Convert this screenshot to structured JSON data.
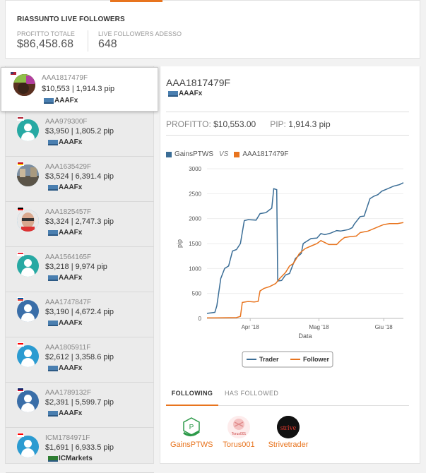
{
  "summary": {
    "title": "RIASSUNTO LIVE FOLLOWERS",
    "profit_label": "PROFITTO TOTALE",
    "profit_value": "$86,458.68",
    "live_label": "LIVE FOLLOWERS ADESSO",
    "live_value": "648"
  },
  "selected": {
    "id": "AAA1817479F",
    "stats": "$10,553 | 1,914.3 pip",
    "broker": "AAAFx"
  },
  "followers": [
    {
      "id": "AAA979300F",
      "stats": "$3,950 | 1,805.2 pip",
      "broker": "AAAFx",
      "avatar": "default-teal"
    },
    {
      "id": "AAA1635429F",
      "stats": "$3,524 | 6,391.4 pip",
      "broker": "AAAFx",
      "avatar": "photo-street"
    },
    {
      "id": "AAA1825457F",
      "stats": "$3,324 | 2,747.3 pip",
      "broker": "AAAFx",
      "avatar": "photo-man"
    },
    {
      "id": "AAA1564165F",
      "stats": "$3,218 | 9,974 pip",
      "broker": "AAAFx",
      "avatar": "default-teal"
    },
    {
      "id": "AAA1747847F",
      "stats": "$3,190 | 4,672.4 pip",
      "broker": "AAAFx",
      "avatar": "default-navy"
    },
    {
      "id": "AAA1805911F",
      "stats": "$2,612 | 3,358.6 pip",
      "broker": "AAAFx",
      "avatar": "default-blue"
    },
    {
      "id": "AAA1789132F",
      "stats": "$2,391 | 5,599.7 pip",
      "broker": "AAAFx",
      "avatar": "default-navy"
    },
    {
      "id": "ICM1784971F",
      "stats": "$1,691 | 6,933.5 pip",
      "broker": "ICMarkets",
      "avatar": "default-blue"
    }
  ],
  "detail": {
    "title": "AAA1817479F",
    "broker": "AAAFx",
    "profit_label": "PROFITTO:",
    "profit_value": "$10,553.00",
    "pip_label": "PIP:",
    "pip_value": "1,914.3 pip",
    "vs": "VS"
  },
  "colors": {
    "trader": "#3a6d96",
    "follower": "#e8741e",
    "accent": "#e8741e"
  },
  "chart_data": {
    "type": "line",
    "xlabel": "Data",
    "ylabel": "pip",
    "ylim": [
      0,
      3000
    ],
    "yticks": [
      0,
      500,
      1000,
      1500,
      2000,
      2500,
      3000
    ],
    "xticks": [
      {
        "label": "Apr '18",
        "t": 0.22
      },
      {
        "label": "Mag '18",
        "t": 0.57
      },
      {
        "label": "Giu '18",
        "t": 0.9
      }
    ],
    "legend_top": [
      "GainsPTWS",
      "AAA1817479F"
    ],
    "series": [
      {
        "name": "Trader",
        "color": "#3a6d96",
        "points": [
          [
            0.0,
            100
          ],
          [
            0.04,
            120
          ],
          [
            0.05,
            250
          ],
          [
            0.07,
            800
          ],
          [
            0.09,
            1000
          ],
          [
            0.11,
            1050
          ],
          [
            0.13,
            1350
          ],
          [
            0.15,
            1380
          ],
          [
            0.17,
            1500
          ],
          [
            0.19,
            1960
          ],
          [
            0.21,
            1980
          ],
          [
            0.25,
            1970
          ],
          [
            0.27,
            2100
          ],
          [
            0.3,
            2120
          ],
          [
            0.33,
            2210
          ],
          [
            0.34,
            2600
          ],
          [
            0.355,
            2580
          ],
          [
            0.36,
            750
          ],
          [
            0.38,
            760
          ],
          [
            0.4,
            870
          ],
          [
            0.42,
            900
          ],
          [
            0.45,
            1200
          ],
          [
            0.48,
            1300
          ],
          [
            0.49,
            1500
          ],
          [
            0.53,
            1600
          ],
          [
            0.56,
            1610
          ],
          [
            0.58,
            1700
          ],
          [
            0.6,
            1680
          ],
          [
            0.63,
            1710
          ],
          [
            0.66,
            1760
          ],
          [
            0.68,
            1750
          ],
          [
            0.72,
            1780
          ],
          [
            0.74,
            1820
          ],
          [
            0.75,
            1890
          ],
          [
            0.78,
            2040
          ],
          [
            0.8,
            2050
          ],
          [
            0.83,
            2400
          ],
          [
            0.85,
            2450
          ],
          [
            0.87,
            2480
          ],
          [
            0.89,
            2550
          ],
          [
            0.92,
            2600
          ],
          [
            0.95,
            2650
          ],
          [
            0.98,
            2680
          ],
          [
            1.0,
            2720
          ]
        ]
      },
      {
        "name": "Follower",
        "color": "#e8741e",
        "points": [
          [
            0.0,
            10
          ],
          [
            0.04,
            12
          ],
          [
            0.15,
            15
          ],
          [
            0.17,
            40
          ],
          [
            0.18,
            320
          ],
          [
            0.21,
            340
          ],
          [
            0.24,
            330
          ],
          [
            0.26,
            340
          ],
          [
            0.27,
            550
          ],
          [
            0.29,
            600
          ],
          [
            0.32,
            640
          ],
          [
            0.35,
            700
          ],
          [
            0.37,
            800
          ],
          [
            0.4,
            920
          ],
          [
            0.42,
            1050
          ],
          [
            0.44,
            1100
          ],
          [
            0.47,
            1300
          ],
          [
            0.5,
            1400
          ],
          [
            0.53,
            1450
          ],
          [
            0.56,
            1500
          ],
          [
            0.58,
            1560
          ],
          [
            0.6,
            1520
          ],
          [
            0.62,
            1480
          ],
          [
            0.66,
            1480
          ],
          [
            0.68,
            1560
          ],
          [
            0.7,
            1620
          ],
          [
            0.73,
            1640
          ],
          [
            0.76,
            1650
          ],
          [
            0.78,
            1720
          ],
          [
            0.82,
            1750
          ],
          [
            0.85,
            1800
          ],
          [
            0.88,
            1850
          ],
          [
            0.9,
            1880
          ],
          [
            0.93,
            1900
          ],
          [
            0.97,
            1900
          ],
          [
            1.0,
            1920
          ]
        ]
      }
    ]
  },
  "tabs": {
    "following": "FOLLOWING",
    "has_followed": "HAS FOLLOWED"
  },
  "following": [
    {
      "name": "GainsPTWS",
      "logo_text": "P"
    },
    {
      "name": "Torus001",
      "logo_text": "Torus001"
    },
    {
      "name": "Strivetrader",
      "logo_text": "strive"
    }
  ]
}
